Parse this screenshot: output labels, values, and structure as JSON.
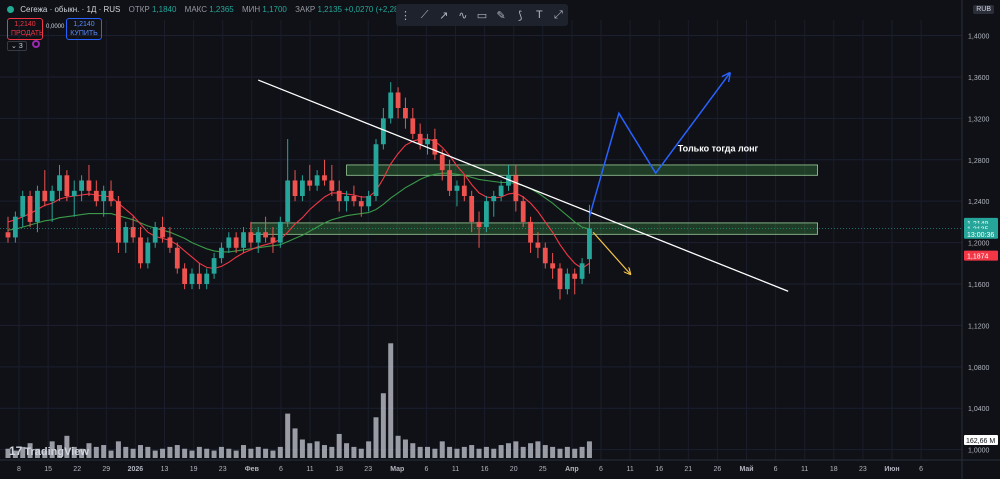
{
  "header": {
    "title": "Сегежа · обыкн. · 1Д · RUS",
    "open_label": "ОТКР",
    "open": "1,1840",
    "high_label": "МАКС",
    "high": "1,2365",
    "low_label": "МИН",
    "low": "1,1700",
    "close_label": "ЗАКР",
    "close": "1,2135",
    "change": "+0,0270 (+2,28%)"
  },
  "trade": {
    "sell_price": "1,2140",
    "sell_label": "ПРОДАТЬ",
    "spread": "0,0000",
    "buy_price": "1,2140",
    "buy_label": "КУПИТЬ"
  },
  "layers_count": "3",
  "currency": "RUB",
  "logo": "TradingView",
  "toolbar_icons": [
    "grip-icon",
    "trendline-icon",
    "ray-icon",
    "path-icon",
    "rectangle-icon",
    "brush-icon",
    "pencil-icon",
    "text-icon",
    "measure-icon"
  ],
  "colors": {
    "up": "#26a69a",
    "down": "#ef5350",
    "ma_fast": "#f23645",
    "ma_slow": "#3a9a48",
    "background": "#0f1117"
  },
  "chart_data": {
    "type": "candlestick",
    "y_ticks": [
      1.0,
      1.04,
      1.08,
      1.12,
      1.16,
      1.2,
      1.24,
      1.28,
      1.32,
      1.36,
      1.4
    ],
    "y_tick_labels": [
      "1,0000",
      "1,0400",
      "1,0800",
      "1,1200",
      "1,1600",
      "1,2000",
      "1,2400",
      "1,2800",
      "1,3200",
      "1,3600",
      "1,4000"
    ],
    "ylim": [
      0.99,
      1.415
    ],
    "x_tick_labels": [
      "8",
      "15",
      "22",
      "29",
      "2026",
      "13",
      "19",
      "23",
      "Фев",
      "6",
      "11",
      "18",
      "23",
      "Мар",
      "6",
      "11",
      "16",
      "20",
      "25",
      "Апр",
      "6",
      "11",
      "16",
      "21",
      "26",
      "Май",
      "6",
      "11",
      "18",
      "23",
      "Июн",
      "6"
    ],
    "candles": [
      [
        1.21,
        1.225,
        1.2,
        1.205
      ],
      [
        1.205,
        1.23,
        1.2,
        1.225
      ],
      [
        1.225,
        1.25,
        1.215,
        1.245
      ],
      [
        1.245,
        1.25,
        1.215,
        1.22
      ],
      [
        1.22,
        1.255,
        1.21,
        1.25
      ],
      [
        1.25,
        1.27,
        1.235,
        1.24
      ],
      [
        1.24,
        1.255,
        1.22,
        1.25
      ],
      [
        1.25,
        1.275,
        1.24,
        1.265
      ],
      [
        1.265,
        1.27,
        1.24,
        1.245
      ],
      [
        1.245,
        1.26,
        1.225,
        1.25
      ],
      [
        1.25,
        1.265,
        1.24,
        1.26
      ],
      [
        1.26,
        1.275,
        1.245,
        1.25
      ],
      [
        1.25,
        1.26,
        1.235,
        1.24
      ],
      [
        1.24,
        1.255,
        1.225,
        1.25
      ],
      [
        1.25,
        1.26,
        1.235,
        1.24
      ],
      [
        1.24,
        1.245,
        1.19,
        1.2
      ],
      [
        1.2,
        1.22,
        1.19,
        1.215
      ],
      [
        1.215,
        1.225,
        1.2,
        1.205
      ],
      [
        1.205,
        1.215,
        1.175,
        1.18
      ],
      [
        1.18,
        1.205,
        1.175,
        1.2
      ],
      [
        1.2,
        1.22,
        1.195,
        1.215
      ],
      [
        1.215,
        1.225,
        1.2,
        1.205
      ],
      [
        1.205,
        1.215,
        1.19,
        1.195
      ],
      [
        1.195,
        1.2,
        1.17,
        1.175
      ],
      [
        1.175,
        1.18,
        1.155,
        1.16
      ],
      [
        1.16,
        1.175,
        1.155,
        1.17
      ],
      [
        1.17,
        1.18,
        1.155,
        1.16
      ],
      [
        1.16,
        1.175,
        1.155,
        1.17
      ],
      [
        1.17,
        1.19,
        1.165,
        1.185
      ],
      [
        1.185,
        1.2,
        1.18,
        1.195
      ],
      [
        1.195,
        1.21,
        1.19,
        1.205
      ],
      [
        1.205,
        1.21,
        1.19,
        1.195
      ],
      [
        1.195,
        1.215,
        1.19,
        1.21
      ],
      [
        1.21,
        1.22,
        1.195,
        1.2
      ],
      [
        1.2,
        1.215,
        1.19,
        1.21
      ],
      [
        1.21,
        1.225,
        1.2,
        1.205
      ],
      [
        1.205,
        1.215,
        1.19,
        1.2
      ],
      [
        1.2,
        1.225,
        1.195,
        1.22
      ],
      [
        1.22,
        1.3,
        1.215,
        1.26
      ],
      [
        1.26,
        1.27,
        1.24,
        1.245
      ],
      [
        1.245,
        1.265,
        1.24,
        1.26
      ],
      [
        1.26,
        1.275,
        1.25,
        1.255
      ],
      [
        1.255,
        1.27,
        1.25,
        1.265
      ],
      [
        1.265,
        1.28,
        1.255,
        1.26
      ],
      [
        1.26,
        1.275,
        1.245,
        1.25
      ],
      [
        1.25,
        1.26,
        1.23,
        1.24
      ],
      [
        1.24,
        1.25,
        1.23,
        1.245
      ],
      [
        1.245,
        1.255,
        1.235,
        1.24
      ],
      [
        1.24,
        1.245,
        1.225,
        1.235
      ],
      [
        1.235,
        1.25,
        1.23,
        1.245
      ],
      [
        1.245,
        1.3,
        1.24,
        1.295
      ],
      [
        1.295,
        1.33,
        1.29,
        1.32
      ],
      [
        1.32,
        1.355,
        1.315,
        1.345
      ],
      [
        1.345,
        1.35,
        1.32,
        1.33
      ],
      [
        1.33,
        1.34,
        1.31,
        1.32
      ],
      [
        1.32,
        1.33,
        1.3,
        1.305
      ],
      [
        1.305,
        1.315,
        1.29,
        1.295
      ],
      [
        1.295,
        1.305,
        1.285,
        1.3
      ],
      [
        1.3,
        1.31,
        1.28,
        1.285
      ],
      [
        1.285,
        1.29,
        1.26,
        1.27
      ],
      [
        1.27,
        1.28,
        1.245,
        1.25
      ],
      [
        1.25,
        1.26,
        1.235,
        1.255
      ],
      [
        1.255,
        1.265,
        1.24,
        1.245
      ],
      [
        1.245,
        1.25,
        1.21,
        1.22
      ],
      [
        1.22,
        1.23,
        1.195,
        1.215
      ],
      [
        1.215,
        1.245,
        1.21,
        1.24
      ],
      [
        1.24,
        1.25,
        1.225,
        1.245
      ],
      [
        1.245,
        1.26,
        1.24,
        1.255
      ],
      [
        1.255,
        1.275,
        1.25,
        1.265
      ],
      [
        1.265,
        1.275,
        1.23,
        1.24
      ],
      [
        1.24,
        1.245,
        1.215,
        1.22
      ],
      [
        1.22,
        1.225,
        1.19,
        1.2
      ],
      [
        1.2,
        1.21,
        1.185,
        1.195
      ],
      [
        1.195,
        1.2,
        1.175,
        1.18
      ],
      [
        1.18,
        1.19,
        1.165,
        1.175
      ],
      [
        1.175,
        1.18,
        1.145,
        1.155
      ],
      [
        1.155,
        1.175,
        1.15,
        1.17
      ],
      [
        1.17,
        1.175,
        1.15,
        1.165
      ],
      [
        1.165,
        1.185,
        1.16,
        1.18
      ],
      [
        1.184,
        1.2365,
        1.17,
        1.2135
      ]
    ],
    "ma_fast": [
      1.22,
      1.222,
      1.225,
      1.228,
      1.232,
      1.236,
      1.238,
      1.242,
      1.244,
      1.245,
      1.246,
      1.247,
      1.246,
      1.245,
      1.244,
      1.238,
      1.232,
      1.226,
      1.218,
      1.21,
      1.206,
      1.204,
      1.202,
      1.198,
      1.192,
      1.186,
      1.18,
      1.176,
      1.175,
      1.177,
      1.181,
      1.186,
      1.19,
      1.193,
      1.196,
      1.198,
      1.2,
      1.203,
      1.21,
      1.218,
      1.224,
      1.232,
      1.238,
      1.244,
      1.248,
      1.248,
      1.247,
      1.246,
      1.244,
      1.244,
      1.25,
      1.262,
      1.276,
      1.286,
      1.294,
      1.298,
      1.3,
      1.3,
      1.298,
      1.292,
      1.284,
      1.274,
      1.266,
      1.256,
      1.248,
      1.244,
      1.243,
      1.244,
      1.247,
      1.248,
      1.244,
      1.238,
      1.23,
      1.22,
      1.21,
      1.198,
      1.188,
      1.18,
      1.175,
      1.18
    ],
    "ma_slow": [
      1.212,
      1.213,
      1.215,
      1.217,
      1.219,
      1.221,
      1.222,
      1.224,
      1.225,
      1.226,
      1.227,
      1.228,
      1.228,
      1.228,
      1.228,
      1.226,
      1.224,
      1.222,
      1.219,
      1.216,
      1.214,
      1.212,
      1.21,
      1.207,
      1.204,
      1.2,
      1.197,
      1.194,
      1.192,
      1.191,
      1.191,
      1.192,
      1.193,
      1.194,
      1.195,
      1.196,
      1.197,
      1.198,
      1.201,
      1.204,
      1.207,
      1.211,
      1.215,
      1.219,
      1.222,
      1.224,
      1.226,
      1.227,
      1.228,
      1.229,
      1.232,
      1.237,
      1.243,
      1.248,
      1.253,
      1.257,
      1.261,
      1.264,
      1.266,
      1.267,
      1.267,
      1.266,
      1.265,
      1.263,
      1.261,
      1.26,
      1.259,
      1.258,
      1.258,
      1.257,
      1.255,
      1.252,
      1.248,
      1.243,
      1.238,
      1.232,
      1.226,
      1.22,
      1.215,
      1.213
    ],
    "volume": [
      0.5,
      0.4,
      0.6,
      0.8,
      0.5,
      0.4,
      0.9,
      0.7,
      1.2,
      0.6,
      0.5,
      0.8,
      0.6,
      0.7,
      0.4,
      0.9,
      0.6,
      0.5,
      0.7,
      0.6,
      0.4,
      0.5,
      0.6,
      0.7,
      0.5,
      0.4,
      0.6,
      0.5,
      0.4,
      0.6,
      0.5,
      0.4,
      0.7,
      0.5,
      0.6,
      0.5,
      0.4,
      0.6,
      2.4,
      1.6,
      1.0,
      0.8,
      0.9,
      0.7,
      0.6,
      1.3,
      0.8,
      0.6,
      0.5,
      0.9,
      2.2,
      3.5,
      6.2,
      1.2,
      1.0,
      0.8,
      0.6,
      0.6,
      0.5,
      0.9,
      0.6,
      0.5,
      0.6,
      0.7,
      0.5,
      0.6,
      0.5,
      0.7,
      0.8,
      0.9,
      0.6,
      0.8,
      0.9,
      0.7,
      0.6,
      0.5,
      0.6,
      0.5,
      0.6,
      0.9
    ],
    "price_labels": [
      {
        "text": "1,2149",
        "value": 1.219,
        "color": "#26a69a"
      },
      {
        "text": "1,2135",
        "value": 1.2135,
        "color": "#26a69a"
      },
      {
        "text": "13:00:36",
        "value": 1.2085,
        "color": "#26a69a"
      },
      {
        "text": "1,1874",
        "value": 1.1874,
        "color": "#f23645"
      }
    ],
    "volume_label": "162,66 M",
    "zones": [
      {
        "x_start": 46,
        "x_end": 110,
        "y_low": 1.265,
        "y_high": 1.275
      },
      {
        "x_start": 33,
        "x_end": 110,
        "y_low": 1.208,
        "y_high": 1.219
      }
    ],
    "trendline": [
      {
        "x": 34,
        "y": 1.357
      },
      {
        "x": 106,
        "y": 1.153
      }
    ],
    "forecast_blue": [
      {
        "x": 79,
        "y": 1.225
      },
      {
        "x": 83,
        "y": 1.325
      },
      {
        "x": 88,
        "y": 1.267
      },
      {
        "x": 98,
        "y": 1.363
      }
    ],
    "forecast_yellow": [
      {
        "x": 79.5,
        "y": 1.21
      },
      {
        "x": 84.5,
        "y": 1.17
      }
    ],
    "annotation": {
      "text": "Только тогда лонг",
      "x": 91,
      "y": 1.288
    }
  }
}
